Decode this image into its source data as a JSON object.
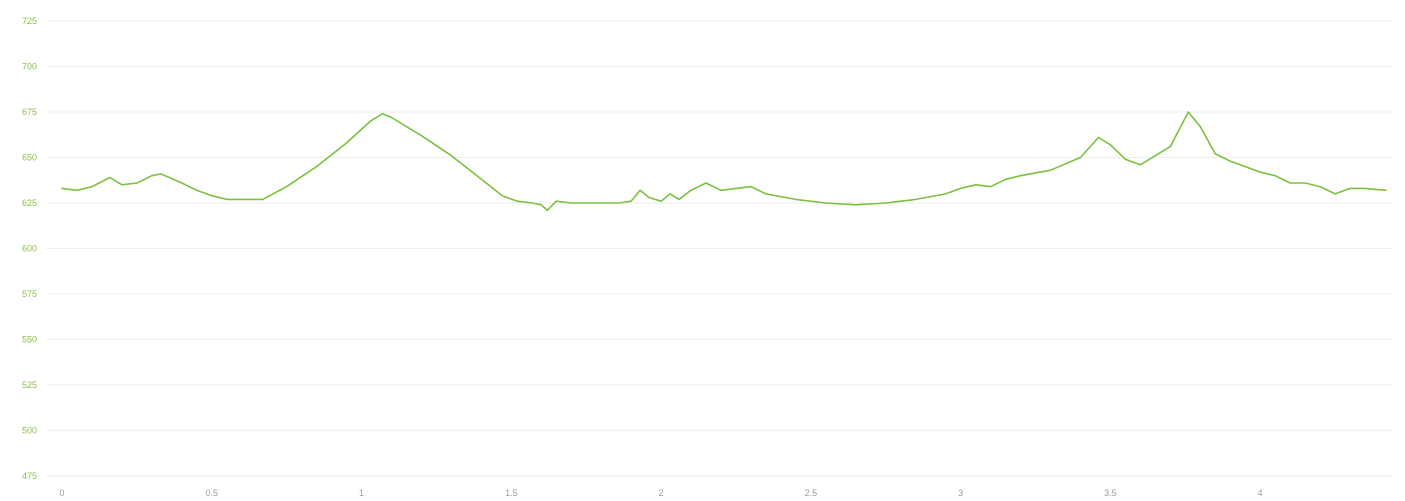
{
  "chart_data": {
    "type": "line",
    "title": "",
    "xlabel": "",
    "ylabel": "",
    "xlim": [
      0,
      4.42
    ],
    "ylim": [
      475,
      725
    ],
    "grid": true,
    "legend": "none",
    "colors": {
      "line": "#7cc040",
      "y_tick_text": "#8bbf4a",
      "x_tick_text": "#9a9a9a",
      "grid": "#eeeeee"
    },
    "x_ticks": [
      {
        "value": 0,
        "label": "0"
      },
      {
        "value": 0.5,
        "label": "0.5"
      },
      {
        "value": 1,
        "label": "1"
      },
      {
        "value": 1.5,
        "label": "1.5"
      },
      {
        "value": 2,
        "label": "2"
      },
      {
        "value": 2.5,
        "label": "2.5"
      },
      {
        "value": 3,
        "label": "3"
      },
      {
        "value": 3.5,
        "label": "3.5"
      },
      {
        "value": 4,
        "label": "4"
      }
    ],
    "y_ticks": [
      {
        "value": 725,
        "label": "725"
      },
      {
        "value": 700,
        "label": "700"
      },
      {
        "value": 675,
        "label": "675"
      },
      {
        "value": 650,
        "label": "650"
      },
      {
        "value": 625,
        "label": "625"
      },
      {
        "value": 600,
        "label": "600"
      },
      {
        "value": 575,
        "label": "575"
      },
      {
        "value": 550,
        "label": "550"
      },
      {
        "value": 525,
        "label": "525"
      },
      {
        "value": 500,
        "label": "500"
      },
      {
        "value": 475,
        "label": "475"
      }
    ],
    "series": [
      {
        "x": [
          0,
          0.05,
          0.1,
          0.16,
          0.2,
          0.25,
          0.3,
          0.33,
          0.4,
          0.45,
          0.5,
          0.55,
          0.6,
          0.67,
          0.75,
          0.85,
          0.95,
          1.03,
          1.07,
          1.1,
          1.2,
          1.3,
          1.4,
          1.47,
          1.52,
          1.57,
          1.6,
          1.62,
          1.65,
          1.7,
          1.78,
          1.86,
          1.9,
          1.93,
          1.96,
          2.0,
          2.03,
          2.06,
          2.1,
          2.15,
          2.2,
          2.25,
          2.3,
          2.35,
          2.45,
          2.55,
          2.65,
          2.75,
          2.85,
          2.95,
          3.0,
          3.05,
          3.1,
          3.15,
          3.2,
          3.3,
          3.4,
          3.46,
          3.5,
          3.55,
          3.6,
          3.65,
          3.7,
          3.76,
          3.8,
          3.85,
          3.9,
          3.95,
          4.0,
          4.05,
          4.1,
          4.15,
          4.2,
          4.25,
          4.3,
          4.35,
          4.42
        ],
        "y": [
          633,
          632,
          634,
          639,
          635,
          636,
          640,
          641,
          636,
          632,
          629,
          627,
          627,
          627,
          634,
          645,
          658,
          670,
          674,
          672,
          662,
          651,
          638,
          629,
          626,
          625,
          624,
          621,
          626,
          625,
          625,
          625,
          626,
          632,
          628,
          626,
          630,
          627,
          632,
          636,
          632,
          633,
          634,
          630,
          627,
          625,
          624,
          625,
          627,
          630,
          633,
          635,
          634,
          638,
          640,
          643,
          650,
          661,
          657,
          649,
          646,
          651,
          656,
          675,
          667,
          652,
          648,
          645,
          642,
          640,
          636,
          636,
          634,
          630,
          633,
          633,
          632
        ]
      }
    ]
  }
}
